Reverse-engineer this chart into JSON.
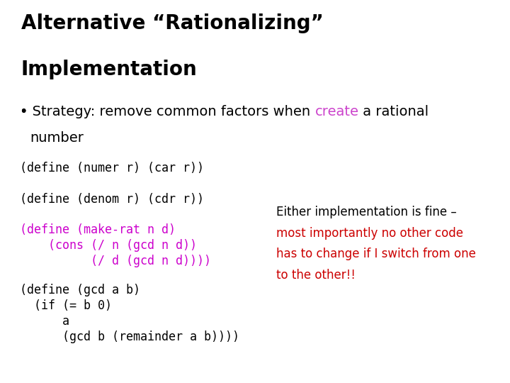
{
  "bg_color": "#ffffff",
  "title_line1": "Alternative “Rationalizing”",
  "title_line2": "Implementation",
  "title_color": "#000000",
  "title_fontsize": 20,
  "bullet_text_black1": "Strategy: remove common factors when ",
  "bullet_text_colored": "create",
  "bullet_text_black2": " a rational",
  "bullet_indent": "  number",
  "bullet_color": "#cc44cc",
  "bullet_fontsize": 14,
  "code_color_black": "#000000",
  "code_color_purple": "#cc00cc",
  "code_fontsize": 12,
  "code_lines": [
    {
      "text": "(define (numer r) (car r))",
      "color": "#000000"
    },
    {
      "text": "",
      "color": "#000000"
    },
    {
      "text": "(define (denom r) (cdr r))",
      "color": "#000000"
    },
    {
      "text": "",
      "color": "#000000"
    },
    {
      "text": "(define (make-rat n d)",
      "color": "#cc00cc"
    },
    {
      "text": "    (cons (/ n (gcd n d))",
      "color": "#cc00cc"
    },
    {
      "text": "          (/ d (gcd n d))))",
      "color": "#cc00cc"
    },
    {
      "text": "",
      "color": "#000000"
    },
    {
      "text": "(define (gcd a b)",
      "color": "#000000"
    },
    {
      "text": "  (if (= b 0)",
      "color": "#000000"
    },
    {
      "text": "      a",
      "color": "#000000"
    },
    {
      "text": "      (gcd b (remainder a b))))",
      "color": "#000000"
    }
  ],
  "note_line1": "Either implementation is fine –",
  "note_line2": "most importantly no other code",
  "note_line3": "has to change if I switch from one",
  "note_line4": "to the other!!",
  "note_color": "#cc0000",
  "note_black": "#000000",
  "note_fontsize": 12
}
